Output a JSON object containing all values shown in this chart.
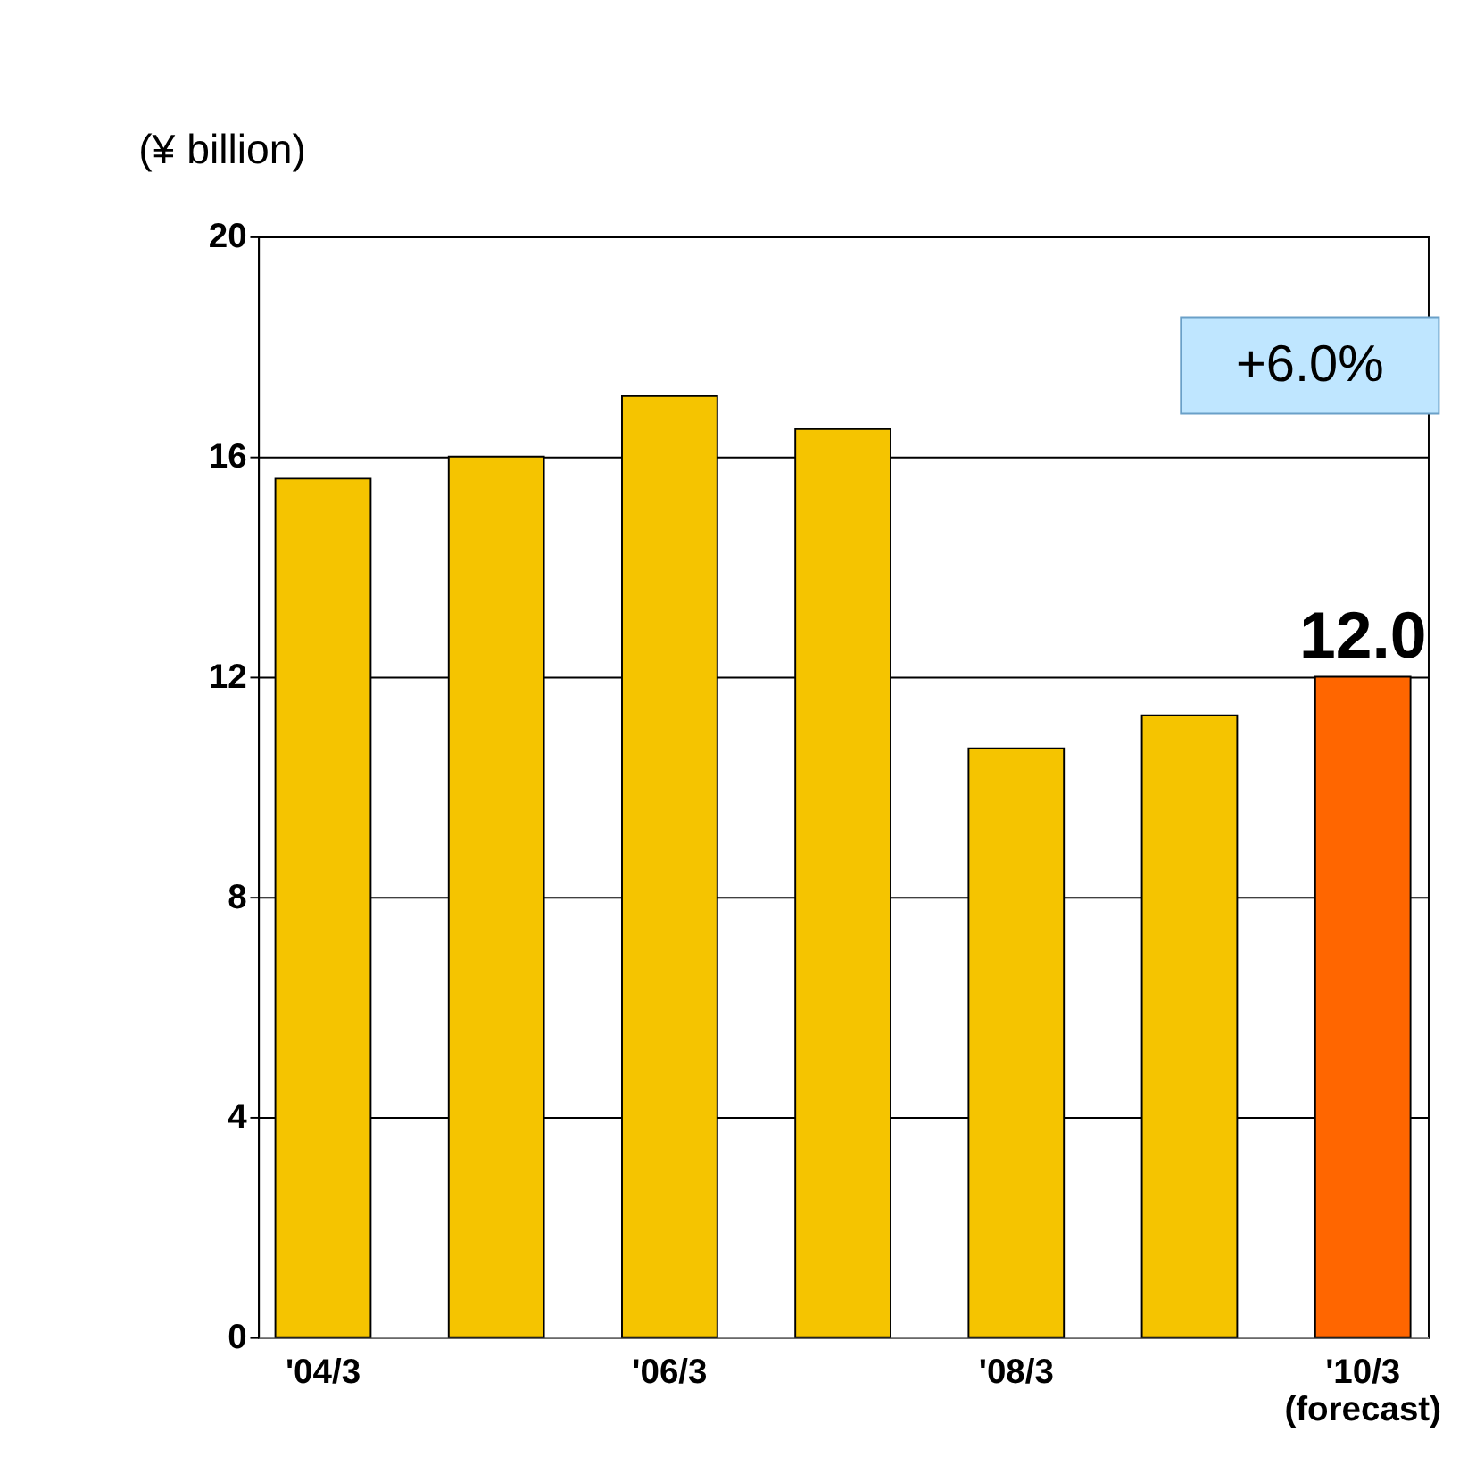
{
  "chart_data": {
    "type": "bar",
    "ylabel": "(¥ billion)",
    "categories": [
      "'04/3",
      null,
      "'06/3",
      null,
      "'08/3",
      null,
      "'10/3\n(forecast)"
    ],
    "values": [
      15.6,
      16.0,
      17.1,
      16.5,
      10.7,
      11.3,
      12.0
    ],
    "colors": [
      "#f5c400",
      "#f5c400",
      "#f5c400",
      "#f5c400",
      "#f5c400",
      "#f5c400",
      "#ff6600"
    ],
    "value_labels": [
      null,
      null,
      null,
      null,
      null,
      null,
      "12.0"
    ],
    "annotations": [
      "+6.0%"
    ],
    "ylim": [
      0,
      20
    ],
    "yticks": [
      0,
      4,
      8,
      12,
      16,
      20
    ],
    "grid": "y"
  }
}
